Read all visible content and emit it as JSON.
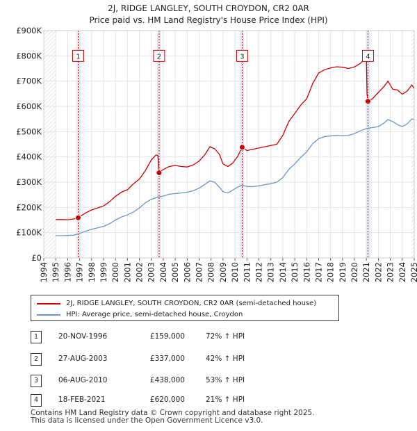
{
  "chart_data": {
    "type": "line",
    "title": "2J, RIDGE LANGLEY, SOUTH CROYDON, CR2 0AR",
    "subtitle": "Price paid vs. HM Land Registry's House Price Index (HPI)",
    "x_range": [
      1994,
      2025
    ],
    "ylim": [
      0,
      900000
    ],
    "y_ticks": [
      0,
      100000,
      200000,
      300000,
      400000,
      500000,
      600000,
      700000,
      800000,
      900000
    ],
    "y_tick_labels": [
      "£0",
      "£100K",
      "£200K",
      "£300K",
      "£400K",
      "£500K",
      "£600K",
      "£700K",
      "£800K",
      "£900K"
    ],
    "x_ticks": [
      1994,
      1995,
      1996,
      1997,
      1998,
      1999,
      2000,
      2001,
      2002,
      2003,
      2004,
      2005,
      2006,
      2007,
      2008,
      2009,
      2010,
      2011,
      2012,
      2013,
      2014,
      2015,
      2016,
      2017,
      2018,
      2019,
      2020,
      2021,
      2022,
      2023,
      2024,
      2025
    ],
    "data_start": 1995.0,
    "data_end": 2025.0,
    "series": [
      {
        "name": "2J, RIDGE LANGLEY, SOUTH CROYDON, CR2 0AR (semi-detached house)",
        "color": "#cc0000",
        "points": [
          [
            1995.0,
            152000
          ],
          [
            1995.5,
            152000
          ],
          [
            1996.0,
            151000
          ],
          [
            1996.5,
            154000
          ],
          [
            1996.88,
            159000
          ],
          [
            1997.5,
            178000
          ],
          [
            1998.0,
            190000
          ],
          [
            1998.5,
            198000
          ],
          [
            1999.0,
            206000
          ],
          [
            1999.5,
            222000
          ],
          [
            2000.0,
            244000
          ],
          [
            2000.5,
            260000
          ],
          [
            2001.0,
            270000
          ],
          [
            2001.5,
            293000
          ],
          [
            2002.0,
            312000
          ],
          [
            2002.5,
            345000
          ],
          [
            2003.0,
            388000
          ],
          [
            2003.4,
            408000
          ],
          [
            2003.55,
            405000
          ],
          [
            2003.65,
            337000
          ],
          [
            2004.0,
            350000
          ],
          [
            2004.5,
            362000
          ],
          [
            2005.0,
            366000
          ],
          [
            2005.5,
            362000
          ],
          [
            2006.0,
            360000
          ],
          [
            2006.5,
            368000
          ],
          [
            2007.0,
            383000
          ],
          [
            2007.5,
            410000
          ],
          [
            2007.9,
            440000
          ],
          [
            2008.3,
            432000
          ],
          [
            2008.7,
            410000
          ],
          [
            2009.0,
            372000
          ],
          [
            2009.4,
            362000
          ],
          [
            2009.8,
            375000
          ],
          [
            2010.2,
            400000
          ],
          [
            2010.6,
            438000
          ],
          [
            2011.0,
            425000
          ],
          [
            2011.5,
            430000
          ],
          [
            2012.0,
            435000
          ],
          [
            2012.5,
            440000
          ],
          [
            2013.0,
            445000
          ],
          [
            2013.5,
            450000
          ],
          [
            2014.0,
            485000
          ],
          [
            2014.5,
            540000
          ],
          [
            2015.0,
            572000
          ],
          [
            2015.5,
            605000
          ],
          [
            2016.0,
            630000
          ],
          [
            2016.5,
            690000
          ],
          [
            2017.0,
            732000
          ],
          [
            2017.5,
            745000
          ],
          [
            2018.0,
            752000
          ],
          [
            2018.5,
            757000
          ],
          [
            2019.0,
            755000
          ],
          [
            2019.5,
            750000
          ],
          [
            2020.0,
            756000
          ],
          [
            2020.5,
            770000
          ],
          [
            2020.8,
            785000
          ],
          [
            2021.0,
            790000
          ],
          [
            2021.05,
            650000
          ],
          [
            2021.13,
            620000
          ],
          [
            2021.5,
            630000
          ],
          [
            2022.0,
            655000
          ],
          [
            2022.5,
            680000
          ],
          [
            2022.8,
            700000
          ],
          [
            2023.2,
            668000
          ],
          [
            2023.6,
            665000
          ],
          [
            2024.0,
            648000
          ],
          [
            2024.4,
            660000
          ],
          [
            2024.8,
            685000
          ],
          [
            2025.0,
            670000
          ]
        ]
      },
      {
        "name": "HPI: Average price, semi-detached house, Croydon",
        "color": "#6b93c8",
        "points": [
          [
            1995.0,
            88000
          ],
          [
            1995.5,
            88000
          ],
          [
            1996.0,
            89000
          ],
          [
            1996.5,
            90000
          ],
          [
            1997.0,
            97000
          ],
          [
            1997.5,
            106000
          ],
          [
            1998.0,
            113000
          ],
          [
            1998.5,
            119000
          ],
          [
            1999.0,
            125000
          ],
          [
            1999.5,
            135000
          ],
          [
            2000.0,
            150000
          ],
          [
            2000.5,
            162000
          ],
          [
            2001.0,
            170000
          ],
          [
            2001.5,
            182000
          ],
          [
            2002.0,
            198000
          ],
          [
            2002.5,
            218000
          ],
          [
            2003.0,
            232000
          ],
          [
            2003.5,
            240000
          ],
          [
            2004.0,
            245000
          ],
          [
            2004.5,
            252000
          ],
          [
            2005.0,
            255000
          ],
          [
            2005.5,
            257000
          ],
          [
            2006.0,
            260000
          ],
          [
            2006.5,
            266000
          ],
          [
            2007.0,
            276000
          ],
          [
            2007.5,
            292000
          ],
          [
            2007.9,
            305000
          ],
          [
            2008.3,
            300000
          ],
          [
            2008.7,
            280000
          ],
          [
            2009.0,
            262000
          ],
          [
            2009.4,
            257000
          ],
          [
            2009.8,
            268000
          ],
          [
            2010.2,
            280000
          ],
          [
            2010.6,
            288000
          ],
          [
            2011.0,
            283000
          ],
          [
            2011.5,
            282000
          ],
          [
            2012.0,
            285000
          ],
          [
            2012.5,
            290000
          ],
          [
            2013.0,
            294000
          ],
          [
            2013.5,
            300000
          ],
          [
            2014.0,
            318000
          ],
          [
            2014.5,
            350000
          ],
          [
            2015.0,
            372000
          ],
          [
            2015.5,
            398000
          ],
          [
            2016.0,
            420000
          ],
          [
            2016.5,
            452000
          ],
          [
            2017.0,
            472000
          ],
          [
            2017.5,
            480000
          ],
          [
            2018.0,
            483000
          ],
          [
            2018.5,
            485000
          ],
          [
            2019.0,
            484000
          ],
          [
            2019.5,
            485000
          ],
          [
            2020.0,
            492000
          ],
          [
            2020.5,
            503000
          ],
          [
            2021.0,
            512000
          ],
          [
            2021.5,
            516000
          ],
          [
            2022.0,
            520000
          ],
          [
            2022.5,
            535000
          ],
          [
            2022.8,
            548000
          ],
          [
            2023.2,
            540000
          ],
          [
            2023.6,
            528000
          ],
          [
            2024.0,
            520000
          ],
          [
            2024.4,
            530000
          ],
          [
            2024.8,
            550000
          ],
          [
            2025.0,
            548000
          ]
        ]
      }
    ],
    "sales": [
      {
        "id": "1",
        "x": 1996.88,
        "price": 159000,
        "date": "20-NOV-1996",
        "price_label": "£159,000",
        "hpi": "72% ↑ HPI"
      },
      {
        "id": "2",
        "x": 2003.65,
        "price": 337000,
        "date": "27-AUG-2003",
        "price_label": "£337,000",
        "hpi": "42% ↑ HPI"
      },
      {
        "id": "3",
        "x": 2010.6,
        "price": 438000,
        "date": "06-AUG-2010",
        "price_label": "£438,000",
        "hpi": "53% ↑ HPI"
      },
      {
        "id": "4",
        "x": 2021.13,
        "price": 620000,
        "date": "18-FEB-2021",
        "price_label": "£620,000",
        "hpi": "21% ↑ HPI"
      }
    ],
    "marker_label_value": 800000,
    "legend": {
      "line1": "2J, RIDGE LANGLEY, SOUTH CROYDON, CR2 0AR (semi-detached house)",
      "line2": "HPI: Average price, semi-detached house, Croydon"
    },
    "footer_line1": "Contains HM Land Registry data © Crown copyright and database right 2025.",
    "footer_line2": "This data is licensed under the Open Government Licence v3.0."
  }
}
